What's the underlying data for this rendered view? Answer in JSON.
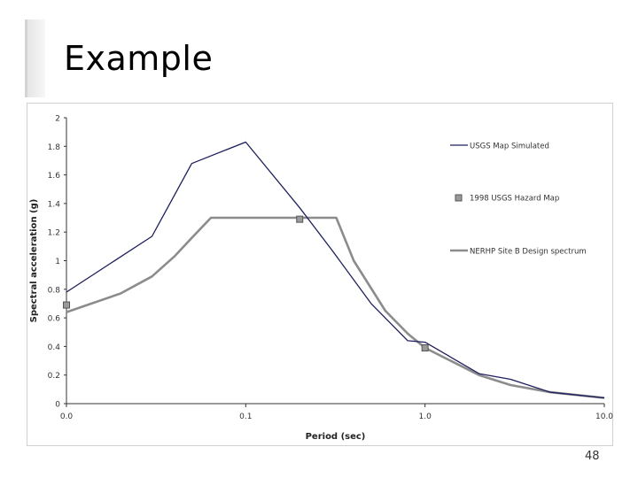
{
  "slide": {
    "title": "Example",
    "page_number": "48"
  },
  "colors": {
    "series_dark": "#1f1f5e",
    "series_gray": "#8c8c8c",
    "marker_fill": "#9a9a9a",
    "marker_stroke": "#555555",
    "axis": "#333333"
  },
  "chart_data": {
    "type": "line",
    "xlabel": "Period (sec)",
    "ylabel": "Spectral acceleration (g)",
    "x_scale": "log",
    "xlim": [
      0.01,
      10
    ],
    "ylim": [
      0,
      2
    ],
    "x_ticks": [
      0.01,
      0.1,
      1,
      10
    ],
    "x_tick_labels": [
      "0.0",
      "0.1",
      "1.0",
      "10.0"
    ],
    "y_ticks": [
      0,
      0.2,
      0.4,
      0.6,
      0.8,
      1,
      1.2,
      1.4,
      1.6,
      1.8,
      2
    ],
    "y_tick_labels": [
      "0",
      "0.2",
      "0.4",
      "0.6",
      "0.8",
      "1",
      "1.2",
      "1.4",
      "1.6",
      "1.8",
      "2"
    ],
    "grid": false,
    "legend_position": "right",
    "series": [
      {
        "name": "USGS Map Simulated",
        "style": "line",
        "x": [
          0.01,
          0.03,
          0.05,
          0.1,
          0.2,
          0.3,
          0.5,
          0.8,
          1.0,
          2.0,
          3.0,
          5.0,
          10.0
        ],
        "y": [
          0.78,
          1.17,
          1.68,
          1.83,
          1.37,
          1.08,
          0.7,
          0.44,
          0.43,
          0.21,
          0.17,
          0.08,
          0.04
        ]
      },
      {
        "name": "1998 USGS Hazard Map",
        "style": "markers",
        "x": [
          0.01,
          0.2,
          1.0
        ],
        "y": [
          0.69,
          1.29,
          0.39
        ]
      },
      {
        "name": "NERHP Site B Design spectrum",
        "style": "line",
        "x": [
          0.01,
          0.02,
          0.03,
          0.04,
          0.05,
          0.064,
          0.1,
          0.2,
          0.32,
          0.4,
          0.6,
          0.8,
          1.0,
          2.0,
          3.0,
          5.0,
          10.0
        ],
        "y": [
          0.64,
          0.77,
          0.89,
          1.03,
          1.16,
          1.3,
          1.3,
          1.3,
          1.3,
          1.0,
          0.65,
          0.49,
          0.39,
          0.2,
          0.13,
          0.08,
          0.04
        ]
      }
    ]
  }
}
